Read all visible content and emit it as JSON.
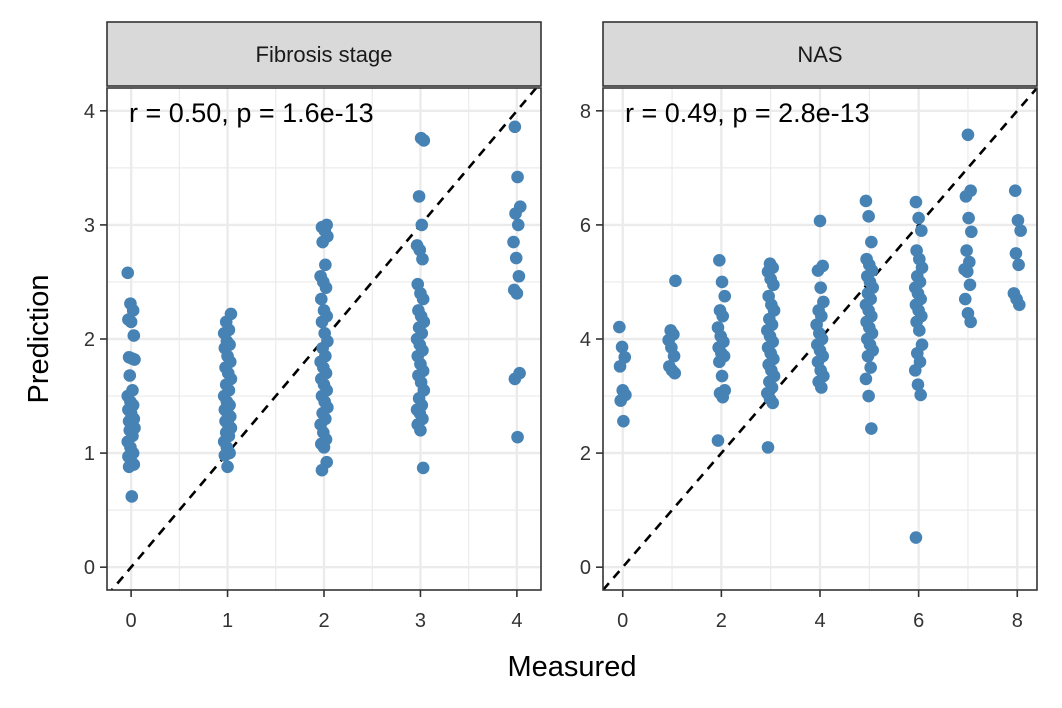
{
  "xlabel": "Measured",
  "ylabel": "Prediction",
  "colors": {
    "point": "#4682B4",
    "strip_bg": "#D9D9D9",
    "panel_border": "#333333",
    "grid": "#EBEBEB",
    "identity_line": "#000000"
  },
  "chart_data": [
    {
      "type": "scatter",
      "title": "Fibrosis stage",
      "annotation": "r = 0.50, p = 1.6e-13",
      "xlabel": "Measured",
      "ylabel": "Prediction",
      "xlim": [
        -0.25,
        4.25
      ],
      "ylim": [
        -0.2,
        4.2
      ],
      "xticks": [
        "0",
        "1",
        "2",
        "3",
        "4"
      ],
      "yticks": [
        "0",
        "1",
        "2",
        "3",
        "4"
      ],
      "grid": true,
      "reference_line": "y = x (dashed)",
      "points": [
        [
          0,
          2.58
        ],
        [
          0,
          2.31
        ],
        [
          0,
          2.25
        ],
        [
          0,
          2.17
        ],
        [
          0,
          2.15
        ],
        [
          0,
          2.03
        ],
        [
          0,
          1.84
        ],
        [
          0,
          1.83
        ],
        [
          0,
          1.82
        ],
        [
          0,
          1.68
        ],
        [
          0,
          1.55
        ],
        [
          0,
          1.5
        ],
        [
          0,
          1.45
        ],
        [
          0,
          1.42
        ],
        [
          0,
          1.38
        ],
        [
          0,
          1.35
        ],
        [
          0,
          1.3
        ],
        [
          0,
          1.28
        ],
        [
          0,
          1.25
        ],
        [
          0,
          1.22
        ],
        [
          0,
          1.2
        ],
        [
          0,
          1.15
        ],
        [
          0,
          1.1
        ],
        [
          0,
          1.05
        ],
        [
          0,
          1.0
        ],
        [
          0,
          0.97
        ],
        [
          0,
          0.93
        ],
        [
          0,
          0.9
        ],
        [
          0,
          0.88
        ],
        [
          0,
          0.62
        ],
        [
          1,
          2.22
        ],
        [
          1,
          2.15
        ],
        [
          1,
          2.08
        ],
        [
          1,
          2.05
        ],
        [
          1,
          1.98
        ],
        [
          1,
          1.95
        ],
        [
          1,
          1.92
        ],
        [
          1,
          1.85
        ],
        [
          1,
          1.8
        ],
        [
          1,
          1.75
        ],
        [
          1,
          1.7
        ],
        [
          1,
          1.65
        ],
        [
          1,
          1.6
        ],
        [
          1,
          1.55
        ],
        [
          1,
          1.5
        ],
        [
          1,
          1.45
        ],
        [
          1,
          1.42
        ],
        [
          1,
          1.38
        ],
        [
          1,
          1.35
        ],
        [
          1,
          1.32
        ],
        [
          1,
          1.28
        ],
        [
          1,
          1.25
        ],
        [
          1,
          1.22
        ],
        [
          1,
          1.18
        ],
        [
          1,
          1.15
        ],
        [
          1,
          1.1
        ],
        [
          1,
          1.05
        ],
        [
          1,
          1.0
        ],
        [
          1,
          0.98
        ],
        [
          1,
          0.88
        ],
        [
          2,
          3.0
        ],
        [
          2,
          2.98
        ],
        [
          2,
          2.95
        ],
        [
          2,
          2.9
        ],
        [
          2,
          2.85
        ],
        [
          2,
          2.65
        ],
        [
          2,
          2.55
        ],
        [
          2,
          2.5
        ],
        [
          2,
          2.45
        ],
        [
          2,
          2.35
        ],
        [
          2,
          2.25
        ],
        [
          2,
          2.2
        ],
        [
          2,
          2.15
        ],
        [
          2,
          2.05
        ],
        [
          2,
          1.98
        ],
        [
          2,
          1.92
        ],
        [
          2,
          1.85
        ],
        [
          2,
          1.8
        ],
        [
          2,
          1.75
        ],
        [
          2,
          1.7
        ],
        [
          2,
          1.65
        ],
        [
          2,
          1.6
        ],
        [
          2,
          1.55
        ],
        [
          2,
          1.5
        ],
        [
          2,
          1.45
        ],
        [
          2,
          1.4
        ],
        [
          2,
          1.35
        ],
        [
          2,
          1.3
        ],
        [
          2,
          1.25
        ],
        [
          2,
          1.18
        ],
        [
          2,
          1.12
        ],
        [
          2,
          1.08
        ],
        [
          2,
          1.05
        ],
        [
          2,
          0.92
        ],
        [
          2,
          0.85
        ],
        [
          3,
          3.76
        ],
        [
          3,
          3.74
        ],
        [
          3,
          3.25
        ],
        [
          3,
          3.0
        ],
        [
          3,
          2.82
        ],
        [
          3,
          2.78
        ],
        [
          3,
          2.7
        ],
        [
          3,
          2.48
        ],
        [
          3,
          2.4
        ],
        [
          3,
          2.35
        ],
        [
          3,
          2.25
        ],
        [
          3,
          2.2
        ],
        [
          3,
          2.15
        ],
        [
          3,
          2.1
        ],
        [
          3,
          2.05
        ],
        [
          3,
          2.0
        ],
        [
          3,
          1.95
        ],
        [
          3,
          1.9
        ],
        [
          3,
          1.85
        ],
        [
          3,
          1.78
        ],
        [
          3,
          1.72
        ],
        [
          3,
          1.68
        ],
        [
          3,
          1.62
        ],
        [
          3,
          1.55
        ],
        [
          3,
          1.48
        ],
        [
          3,
          1.42
        ],
        [
          3,
          1.38
        ],
        [
          3,
          1.35
        ],
        [
          3,
          1.3
        ],
        [
          3,
          1.25
        ],
        [
          3,
          1.2
        ],
        [
          3,
          0.87
        ],
        [
          4,
          3.86
        ],
        [
          4,
          3.42
        ],
        [
          4,
          3.16
        ],
        [
          4,
          3.1
        ],
        [
          4,
          3.0
        ],
        [
          4,
          2.85
        ],
        [
          4,
          2.71
        ],
        [
          4,
          2.55
        ],
        [
          4,
          2.43
        ],
        [
          4,
          2.4
        ],
        [
          4,
          1.7
        ],
        [
          4,
          1.65
        ],
        [
          4,
          1.14
        ]
      ]
    },
    {
      "type": "scatter",
      "title": "NAS",
      "annotation": "r = 0.49, p = 2.8e-13",
      "xlabel": "Measured",
      "ylabel": "Prediction",
      "xlim": [
        -0.4,
        8.4
      ],
      "ylim": [
        -0.4,
        8.4
      ],
      "xticks": [
        "0",
        "2",
        "4",
        "6",
        "8"
      ],
      "yticks": [
        "0",
        "2",
        "4",
        "6",
        "8"
      ],
      "grid": true,
      "reference_line": "y = x (dashed)",
      "points": [
        [
          0,
          4.21
        ],
        [
          0,
          3.86
        ],
        [
          0,
          3.68
        ],
        [
          0,
          3.52
        ],
        [
          0,
          3.1
        ],
        [
          0,
          3.02
        ],
        [
          0,
          2.92
        ],
        [
          0,
          2.56
        ],
        [
          1,
          5.02
        ],
        [
          1,
          4.15
        ],
        [
          1,
          4.08
        ],
        [
          1,
          3.98
        ],
        [
          1,
          3.85
        ],
        [
          1,
          3.7
        ],
        [
          1,
          3.52
        ],
        [
          1,
          3.45
        ],
        [
          1,
          3.4
        ],
        [
          2,
          5.38
        ],
        [
          2,
          5.0
        ],
        [
          2,
          4.75
        ],
        [
          2,
          4.5
        ],
        [
          2,
          4.4
        ],
        [
          2,
          4.2
        ],
        [
          2,
          4.05
        ],
        [
          2,
          3.95
        ],
        [
          2,
          3.85
        ],
        [
          2,
          3.75
        ],
        [
          2,
          3.7
        ],
        [
          2,
          3.6
        ],
        [
          2,
          3.35
        ],
        [
          2,
          3.1
        ],
        [
          2,
          3.05
        ],
        [
          2,
          2.98
        ],
        [
          2,
          2.22
        ],
        [
          3,
          5.32
        ],
        [
          3,
          5.25
        ],
        [
          3,
          5.18
        ],
        [
          3,
          5.05
        ],
        [
          3,
          4.95
        ],
        [
          3,
          4.75
        ],
        [
          3,
          4.6
        ],
        [
          3,
          4.5
        ],
        [
          3,
          4.35
        ],
        [
          3,
          4.25
        ],
        [
          3,
          4.15
        ],
        [
          3,
          4.05
        ],
        [
          3,
          3.95
        ],
        [
          3,
          3.85
        ],
        [
          3,
          3.75
        ],
        [
          3,
          3.65
        ],
        [
          3,
          3.55
        ],
        [
          3,
          3.45
        ],
        [
          3,
          3.35
        ],
        [
          3,
          3.25
        ],
        [
          3,
          3.15
        ],
        [
          3,
          3.05
        ],
        [
          3,
          2.95
        ],
        [
          3,
          2.88
        ],
        [
          3,
          2.1
        ],
        [
          4,
          6.07
        ],
        [
          4,
          5.28
        ],
        [
          4,
          5.2
        ],
        [
          4,
          4.9
        ],
        [
          4,
          4.65
        ],
        [
          4,
          4.5
        ],
        [
          4,
          4.4
        ],
        [
          4,
          4.25
        ],
        [
          4,
          4.1
        ],
        [
          4,
          4.0
        ],
        [
          4,
          3.9
        ],
        [
          4,
          3.8
        ],
        [
          4,
          3.7
        ],
        [
          4,
          3.6
        ],
        [
          4,
          3.45
        ],
        [
          4,
          3.35
        ],
        [
          4,
          3.25
        ],
        [
          4,
          3.15
        ],
        [
          5,
          6.42
        ],
        [
          5,
          6.15
        ],
        [
          5,
          5.7
        ],
        [
          5,
          5.4
        ],
        [
          5,
          5.3
        ],
        [
          5,
          5.2
        ],
        [
          5,
          5.1
        ],
        [
          5,
          5.0
        ],
        [
          5,
          4.9
        ],
        [
          5,
          4.8
        ],
        [
          5,
          4.7
        ],
        [
          5,
          4.6
        ],
        [
          5,
          4.5
        ],
        [
          5,
          4.4
        ],
        [
          5,
          4.3
        ],
        [
          5,
          4.2
        ],
        [
          5,
          4.1
        ],
        [
          5,
          4.0
        ],
        [
          5,
          3.9
        ],
        [
          5,
          3.8
        ],
        [
          5,
          3.7
        ],
        [
          5,
          3.5
        ],
        [
          5,
          3.3
        ],
        [
          5,
          3.0
        ],
        [
          5,
          2.43
        ],
        [
          6,
          6.4
        ],
        [
          6,
          6.12
        ],
        [
          6,
          5.9
        ],
        [
          6,
          5.55
        ],
        [
          6,
          5.4
        ],
        [
          6,
          5.25
        ],
        [
          6,
          5.1
        ],
        [
          6,
          5.0
        ],
        [
          6,
          4.9
        ],
        [
          6,
          4.8
        ],
        [
          6,
          4.7
        ],
        [
          6,
          4.6
        ],
        [
          6,
          4.5
        ],
        [
          6,
          4.4
        ],
        [
          6,
          4.3
        ],
        [
          6,
          4.15
        ],
        [
          6,
          3.9
        ],
        [
          6,
          3.75
        ],
        [
          6,
          3.6
        ],
        [
          6,
          3.45
        ],
        [
          6,
          3.2
        ],
        [
          6,
          3.02
        ],
        [
          6,
          0.52
        ],
        [
          7,
          7.58
        ],
        [
          7,
          6.6
        ],
        [
          7,
          6.5
        ],
        [
          7,
          6.12
        ],
        [
          7,
          5.88
        ],
        [
          7,
          5.55
        ],
        [
          7,
          5.35
        ],
        [
          7,
          5.22
        ],
        [
          7,
          5.18
        ],
        [
          7,
          4.95
        ],
        [
          7,
          4.7
        ],
        [
          7,
          4.45
        ],
        [
          7,
          4.3
        ],
        [
          8,
          6.6
        ],
        [
          8,
          6.08
        ],
        [
          8,
          5.9
        ],
        [
          8,
          5.5
        ],
        [
          8,
          5.3
        ],
        [
          8,
          4.8
        ],
        [
          8,
          4.7
        ],
        [
          8,
          4.6
        ]
      ]
    }
  ]
}
